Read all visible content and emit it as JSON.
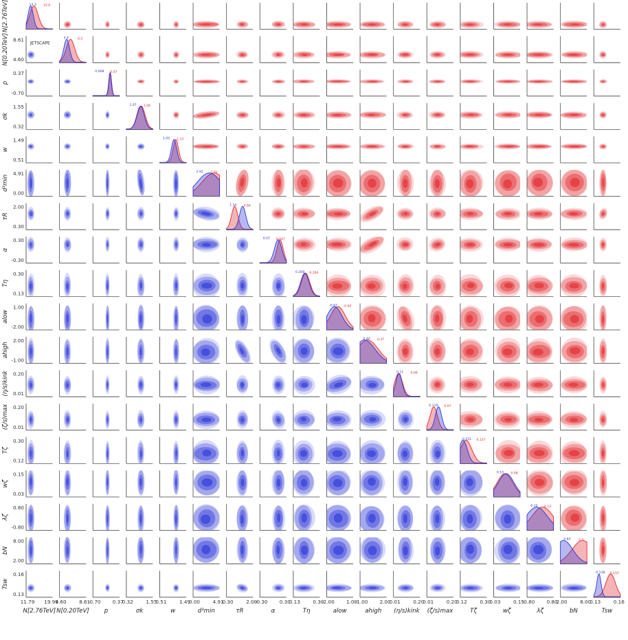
{
  "chart_data": {
    "type": "corner",
    "series": [
      {
        "name": "",
        "color": "#2a35d8"
      },
      {
        "name": "",
        "color": "#e2272b"
      }
    ],
    "params": [
      {
        "label": "N[2.76TeV]",
        "ticks": [
          "11.79",
          "19.99"
        ],
        "range": [
          11.79,
          19.99
        ],
        "peak_blue": "14.3",
        "peak_red": "15.6"
      },
      {
        "label": "N[0.20TeV]",
        "ticks": [
          "4.60",
          "8.61"
        ],
        "range": [
          4.6,
          8.61
        ],
        "peak_blue": "5.4",
        "peak_red": "6.5"
      },
      {
        "label": "p",
        "ticks": [
          "-0.70",
          "0.37"
        ],
        "range": [
          -0.7,
          0.37
        ],
        "peak_blue": "0.008",
        "peak_red": "0.07"
      },
      {
        "label": "σk",
        "ticks": [
          "0.32",
          "1.55"
        ],
        "range": [
          0.32,
          1.55
        ],
        "peak_blue": "1.07",
        "peak_red": "1.06"
      },
      {
        "label": "w",
        "ticks": [
          "0.51",
          "1.49"
        ],
        "range": [
          0.51,
          1.49
        ],
        "peak_blue": "1.05",
        "peak_red": "1.12"
      },
      {
        "label": "d³min",
        "ticks": [
          "0.00",
          "4.91"
        ],
        "range": [
          0.0,
          4.91
        ],
        "peak_blue": "2.92",
        "peak_red": "3.59"
      },
      {
        "label": "τR",
        "ticks": [
          "0.30",
          "2.00"
        ],
        "range": [
          0.3,
          2.0
        ],
        "peak_blue": "1.34",
        "peak_red": "0.84"
      },
      {
        "label": "α",
        "ticks": [
          "-0.30",
          "0.30"
        ],
        "range": [
          -0.3,
          0.3
        ],
        "peak_blue": "0.07",
        "peak_red": "0.047"
      },
      {
        "label": "Tη",
        "ticks": [
          "0.13",
          "0.30"
        ],
        "range": [
          0.13,
          0.3
        ],
        "peak_blue": "0.208",
        "peak_red": "0.204"
      },
      {
        "label": "alow",
        "ticks": [
          "-2.00",
          "1.00"
        ],
        "range": [
          -2.0,
          1.0
        ],
        "peak_blue": "-0.67",
        "peak_red": "-0.62"
      },
      {
        "label": "ahigh",
        "ticks": [
          "-1.00",
          "2.00"
        ],
        "range": [
          -1.0,
          2.0
        ],
        "peak_blue": "0.40",
        "peak_red": "0.37"
      },
      {
        "label": "(η/s)kink",
        "ticks": [
          "0.01",
          "0.20"
        ],
        "range": [
          0.01,
          0.2
        ],
        "peak_blue": "0.11",
        "peak_red": "0.06"
      },
      {
        "label": "(ζ/s)max",
        "ticks": [
          "0.01",
          "0.20"
        ],
        "range": [
          0.01,
          0.2
        ],
        "peak_blue": "0.119",
        "peak_red": "0.07"
      },
      {
        "label": "Tζ",
        "ticks": [
          "0.12",
          "0.30"
        ],
        "range": [
          0.12,
          0.3
        ],
        "peak_blue": "0.151",
        "peak_red": "0.137"
      },
      {
        "label": "wζ",
        "ticks": [
          "0.03",
          "0.15"
        ],
        "range": [
          0.03,
          0.15
        ],
        "peak_blue": "0.10",
        "peak_red": "0.08"
      },
      {
        "label": "λζ",
        "ticks": [
          "-0.80",
          "0.80"
        ],
        "range": [
          -0.8,
          0.8
        ],
        "peak_blue": "-0.15",
        "peak_red": "0.13"
      },
      {
        "label": "bN",
        "ticks": [
          "2.00",
          "8.00"
        ],
        "range": [
          2.0,
          8.0
        ],
        "peak_blue": "4.84",
        "peak_red": "5.5"
      },
      {
        "label": "Tsw",
        "ticks": [
          "0.13",
          "0.16"
        ],
        "range": [
          0.13,
          0.16
        ],
        "peak_blue": "0.138",
        "peak_red": "0.155"
      }
    ],
    "inset_label": "JETSCAPE"
  }
}
